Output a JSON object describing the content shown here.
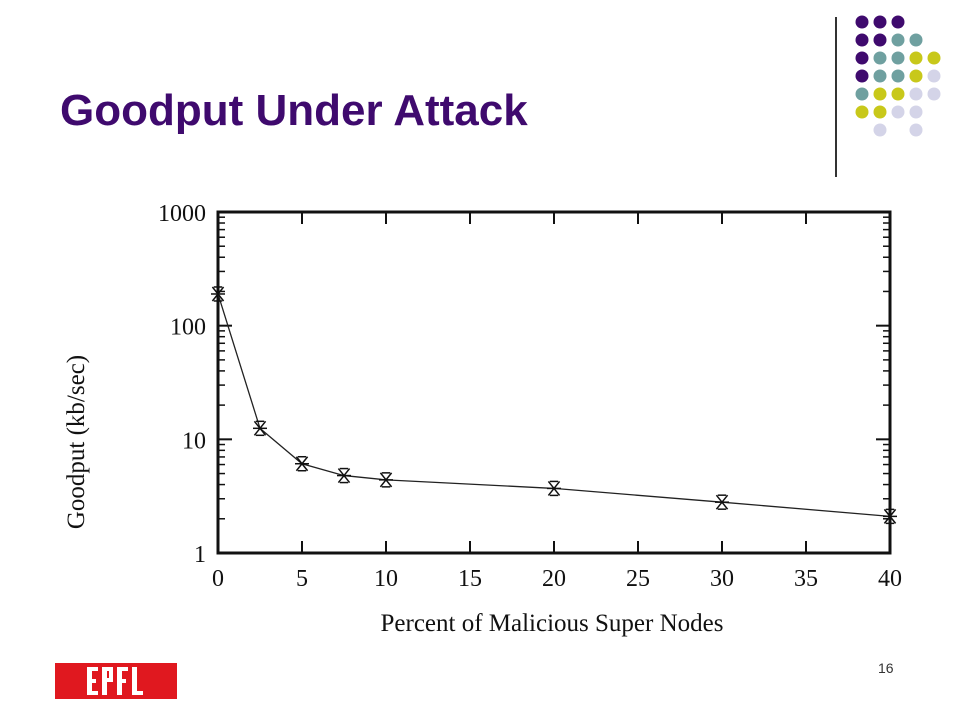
{
  "slide": {
    "title": "Goodput Under Attack",
    "page_number": "16"
  },
  "decor": {
    "dot_colors": [
      "#3f0a6e",
      "#6fa0a0",
      "#c8c81a",
      "#d4d4e8"
    ]
  },
  "logo": {
    "name": "EPFL",
    "color": "#e0181f",
    "text": "EPFL"
  },
  "chart_data": {
    "type": "line",
    "xlabel": "Percent of Malicious Super Nodes",
    "ylabel": "Goodput (kb/sec)",
    "xlim": [
      0,
      40
    ],
    "ylim": [
      1,
      1000
    ],
    "yscale": "log",
    "xticks": [
      0,
      5,
      10,
      15,
      20,
      25,
      30,
      35,
      40
    ],
    "yticks": [
      1,
      10,
      100,
      1000
    ],
    "grid": false,
    "marker": "asterisk",
    "series": [
      {
        "x": [
          0,
          2.5,
          5,
          7.5,
          10,
          20,
          30,
          40
        ],
        "values": [
          190,
          12.5,
          6.1,
          4.8,
          4.4,
          3.7,
          2.8,
          2.1
        ]
      }
    ]
  }
}
